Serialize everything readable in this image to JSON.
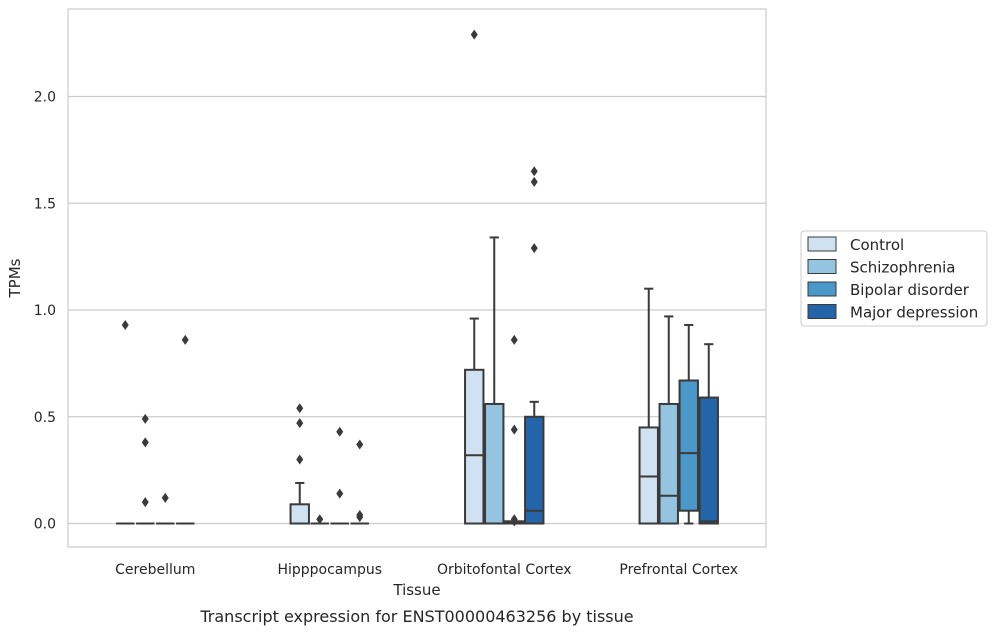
{
  "caption": "Transcript expression for ENST00000463256 by tissue",
  "chart_data": {
    "type": "boxplot",
    "xlabel": "Tissue",
    "ylabel": "TPMs",
    "ylim": [
      -0.11,
      2.41
    ],
    "yticks": [
      0.0,
      0.5,
      1.0,
      1.5,
      2.0
    ],
    "ytick_labels": [
      "0.0",
      "0.5",
      "1.0",
      "1.5",
      "2.0"
    ],
    "grid": "horizontal",
    "legend_position": "right",
    "categories": [
      "Cerebellum",
      "Hipppocampus",
      "Orbitofontal Cortex",
      "Prefrontal Cortex"
    ],
    "series": [
      {
        "name": "Control",
        "color": "#d0e1f2",
        "boxes": [
          {
            "q1": 0,
            "median": 0,
            "q3": 0,
            "whislo": 0,
            "whishi": 0,
            "fliers": [
              0.93
            ]
          },
          {
            "q1": 0,
            "median": 0,
            "q3": 0.09,
            "whislo": 0,
            "whishi": 0.19,
            "fliers": [
              0.54,
              0.47,
              0.3
            ]
          },
          {
            "q1": 0,
            "median": 0.32,
            "q3": 0.72,
            "whislo": 0,
            "whishi": 0.96,
            "fliers": [
              2.29
            ]
          },
          {
            "q1": 0,
            "median": 0.22,
            "q3": 0.45,
            "whislo": 0,
            "whishi": 1.1,
            "fliers": []
          }
        ]
      },
      {
        "name": "Schizophrenia",
        "color": "#94c4df",
        "boxes": [
          {
            "q1": 0,
            "median": 0,
            "q3": 0,
            "whislo": 0,
            "whishi": 0,
            "fliers": [
              0.49,
              0.38,
              0.1
            ]
          },
          {
            "q1": 0,
            "median": 0,
            "q3": 0,
            "whislo": 0,
            "whishi": 0,
            "fliers": [
              0.02
            ]
          },
          {
            "q1": 0,
            "median": 0,
            "q3": 0.56,
            "whislo": 0,
            "whishi": 1.34,
            "fliers": []
          },
          {
            "q1": 0,
            "median": 0.13,
            "q3": 0.56,
            "whislo": 0,
            "whishi": 0.97,
            "fliers": []
          }
        ]
      },
      {
        "name": "Bipolar disorder",
        "color": "#4a98c9",
        "boxes": [
          {
            "q1": 0,
            "median": 0,
            "q3": 0,
            "whislo": 0,
            "whishi": 0,
            "fliers": [
              0.12
            ]
          },
          {
            "q1": 0,
            "median": 0,
            "q3": 0,
            "whislo": 0,
            "whishi": 0,
            "fliers": [
              0.43,
              0.14
            ]
          },
          {
            "q1": 0,
            "median": 0.01,
            "q3": 0.01,
            "whislo": 0,
            "whishi": 0.01,
            "fliers": [
              0.86,
              0.44,
              0.02,
              0.01
            ]
          },
          {
            "q1": 0.06,
            "median": 0.33,
            "q3": 0.67,
            "whislo": 0,
            "whishi": 0.93,
            "fliers": []
          }
        ]
      },
      {
        "name": "Major depression",
        "color": "#2365a8",
        "boxes": [
          {
            "q1": 0,
            "median": 0,
            "q3": 0,
            "whislo": 0,
            "whishi": 0,
            "fliers": [
              0.86
            ]
          },
          {
            "q1": 0,
            "median": 0,
            "q3": 0,
            "whislo": 0,
            "whishi": 0,
            "fliers": [
              0.37,
              0.04,
              0.03
            ]
          },
          {
            "q1": 0,
            "median": 0.06,
            "q3": 0.5,
            "whislo": 0,
            "whishi": 0.57,
            "fliers": [
              1.65,
              1.6,
              1.29
            ]
          },
          {
            "q1": 0,
            "median": 0.01,
            "q3": 0.59,
            "whislo": 0,
            "whishi": 0.84,
            "fliers": []
          }
        ]
      }
    ]
  }
}
